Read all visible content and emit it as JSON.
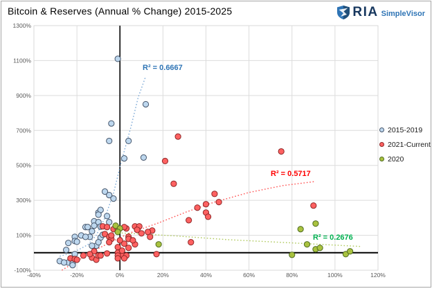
{
  "header": {
    "title": "Bitcoin & Reserves (Annual % Change) 2015-2025",
    "logo": {
      "brand": "RIA",
      "product": "SimpleVisor"
    }
  },
  "chart_data": {
    "type": "scatter",
    "title": "Bitcoin & Reserves (Annual % Change) 2015-2025",
    "xlabel": "",
    "ylabel": "",
    "grid": true,
    "legend_position": "right",
    "x_axis": {
      "min": -40,
      "max": 120,
      "tick_values": [
        -40,
        -20,
        0,
        20,
        40,
        60,
        80,
        100,
        120
      ],
      "tick_labels": [
        "-40%",
        "-20%",
        "0%",
        "20%",
        "40%",
        "60%",
        "80%",
        "100%",
        "120%"
      ]
    },
    "y_axis": {
      "min": -100,
      "max": 1300,
      "tick_values": [
        1300,
        1100,
        900,
        700,
        500,
        300,
        100,
        -100
      ],
      "tick_labels": [
        "1300%",
        "1100%",
        "900%",
        "700%",
        "500%",
        "300%",
        "100%",
        "-100%"
      ]
    },
    "colors": {
      "grid": "#dcdcdc",
      "plot_border": "#d9d9d9",
      "axis_zero_lines": "#000000"
    },
    "series": [
      {
        "name": "2015-2019",
        "fill": "#bdd7ee",
        "stroke": "#44546a",
        "points": [
          [
            -1,
            1110
          ],
          [
            12,
            850
          ],
          [
            -4,
            740
          ],
          [
            -5,
            640
          ],
          [
            4,
            640
          ],
          [
            2,
            540
          ],
          [
            11,
            545
          ],
          [
            -7,
            350
          ],
          [
            -5,
            330
          ],
          [
            -3,
            310
          ],
          [
            -10,
            230
          ],
          [
            -9,
            245
          ],
          [
            -10,
            218
          ],
          [
            -6,
            210
          ],
          [
            -12,
            180
          ],
          [
            -10,
            175
          ],
          [
            -12,
            155
          ],
          [
            -5,
            175
          ],
          [
            -16,
            147
          ],
          [
            -15,
            147
          ],
          [
            -9,
            150
          ],
          [
            -13,
            123
          ],
          [
            -14,
            91
          ],
          [
            -18,
            99
          ],
          [
            -16,
            91
          ],
          [
            -21,
            91
          ],
          [
            -21,
            67
          ],
          [
            -20,
            63
          ],
          [
            -24,
            56
          ],
          [
            -25,
            16
          ],
          [
            -11,
            40
          ],
          [
            -9,
            87
          ],
          [
            -8,
            103
          ],
          [
            -10,
            60
          ],
          [
            -13,
            40
          ],
          [
            -28,
            -48
          ],
          [
            -24,
            -56
          ],
          [
            -22,
            -60
          ],
          [
            -21,
            -8
          ],
          [
            -22,
            -71
          ],
          [
            -26,
            -56
          ]
        ],
        "trend": {
          "label": "R² = 0.6667",
          "label_color": "#2e74b5",
          "line_color": "#7ca9d6",
          "points": [
            [
              -28,
              -20
            ],
            [
              -22,
              0
            ],
            [
              -15,
              45
            ],
            [
              -11,
              100
            ],
            [
              -7,
              200
            ],
            [
              -3,
              340
            ],
            [
              0.5,
              515
            ],
            [
              5,
              715
            ],
            [
              8.5,
              890
            ],
            [
              12,
              1010
            ]
          ]
        }
      },
      {
        "name": "2021-Current",
        "fill": "#ff6161",
        "stroke": "#8c2626",
        "points": [
          [
            75,
            580
          ],
          [
            27,
            665
          ],
          [
            25,
            395
          ],
          [
            21,
            525
          ],
          [
            44,
            337
          ],
          [
            40,
            278
          ],
          [
            46,
            290
          ],
          [
            36,
            258
          ],
          [
            90,
            270
          ],
          [
            40,
            230
          ],
          [
            32,
            186
          ],
          [
            41,
            206
          ],
          [
            33,
            60
          ],
          [
            17,
            -8
          ],
          [
            15,
            127
          ],
          [
            14,
            91
          ],
          [
            7,
            151
          ],
          [
            9,
            151
          ],
          [
            8,
            131
          ],
          [
            10,
            111
          ],
          [
            3,
            139
          ],
          [
            2,
            147
          ],
          [
            4,
            91
          ],
          [
            2,
            52
          ],
          [
            7,
            48
          ],
          [
            0,
            71
          ],
          [
            -1,
            32
          ],
          [
            4,
            28
          ],
          [
            1,
            -12
          ],
          [
            3,
            -16
          ],
          [
            -8,
            151
          ],
          [
            -6,
            147
          ],
          [
            -3,
            135
          ],
          [
            -1,
            131
          ],
          [
            -7,
            107
          ],
          [
            -5,
            91
          ],
          [
            -4,
            79
          ],
          [
            -23,
            -32
          ],
          [
            -21,
            -36
          ],
          [
            -20,
            -40
          ],
          [
            -17,
            -16
          ],
          [
            -13,
            -28
          ],
          [
            -11,
            -40
          ],
          [
            -10,
            -16
          ],
          [
            -6,
            -4
          ],
          [
            -5,
            60
          ],
          [
            -4,
            99
          ],
          [
            -1,
            0
          ],
          [
            -1,
            -16
          ],
          [
            -1,
            -32
          ],
          [
            1,
            12
          ],
          [
            4,
            79
          ],
          [
            6,
            71
          ],
          [
            2,
            -32
          ],
          [
            -12,
            8
          ],
          [
            -14,
            -8
          ],
          [
            -9,
            -16
          ],
          [
            13,
            119
          ]
        ],
        "trend": {
          "label": "R² = 0.5717",
          "label_color": "#ff0000",
          "line_color": "#ff4f4f",
          "points": [
            [
              -27,
              -100
            ],
            [
              -20,
              -48
            ],
            [
              -12,
              12
            ],
            [
              -4,
              63
            ],
            [
              5,
              115
            ],
            [
              18,
              171
            ],
            [
              31,
              234
            ],
            [
              44,
              290
            ],
            [
              60,
              345
            ],
            [
              76,
              385
            ],
            [
              91,
              408
            ]
          ]
        }
      },
      {
        "name": "2020",
        "fill": "#a9c23f",
        "stroke": "#4e6b21",
        "points": [
          [
            -2,
            155
          ],
          [
            0,
            139
          ],
          [
            -1,
            119
          ],
          [
            18,
            48
          ],
          [
            80,
            -12
          ],
          [
            84,
            135
          ],
          [
            87,
            48
          ],
          [
            91,
            167
          ],
          [
            91,
            20
          ],
          [
            93,
            28
          ],
          [
            105,
            -8
          ],
          [
            107,
            8
          ]
        ],
        "trend": {
          "label": "R² = 0.2676",
          "label_color": "#00b050",
          "line_color": "#afc95d",
          "points": [
            [
              -2,
              115
            ],
            [
              25,
              97
            ],
            [
              50,
              75
            ],
            [
              79,
              57
            ],
            [
              112,
              36
            ]
          ]
        }
      }
    ]
  }
}
